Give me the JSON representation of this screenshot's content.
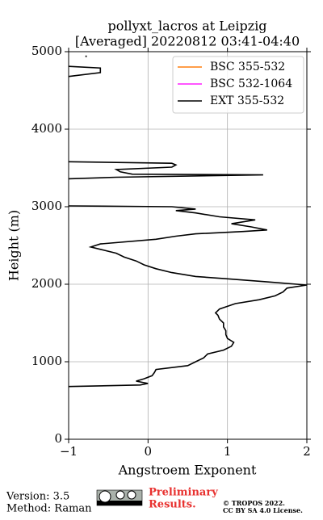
{
  "chart_data": {
    "type": "line",
    "title": [
      "pollyxt_lacros at Leipzig",
      "[Averaged] 20220812 03:41-04:40"
    ],
    "x_label": "Angstroem Exponent",
    "y_label": "Height (m)",
    "y": [
      680,
      700,
      720,
      750,
      780,
      820,
      860,
      900,
      950,
      1000,
      1050,
      1100,
      1150,
      1200,
      1250,
      1300,
      1350,
      1400,
      1450,
      1500,
      1550,
      1600,
      1630,
      1680,
      1750,
      1800,
      1850,
      1900,
      1950,
      1990,
      2030,
      2070,
      2100,
      2150,
      2200,
      2250,
      2300,
      2350,
      2400,
      2450,
      2480,
      2520,
      2580,
      2620,
      2650,
      2680,
      2700,
      2740,
      2780,
      2830,
      2870,
      2920,
      2950,
      2970,
      3000,
      3010,
      3200,
      3360,
      3380,
      3410,
      3420,
      3450,
      3480,
      3510,
      3540,
      3560,
      3580,
      4200,
      4680,
      4730,
      4760,
      4790,
      4810,
      4880,
      4930,
      4950
    ],
    "series": [
      {
        "name": "BSC 355-532",
        "color": "#ff7f0e",
        "values": [
          null,
          null,
          null,
          null,
          null,
          null,
          null,
          null,
          null,
          null,
          null,
          null,
          null,
          null,
          null,
          null,
          null,
          null,
          null,
          null,
          null,
          null,
          null,
          null,
          null,
          null,
          null,
          null,
          null,
          null,
          null,
          null,
          null,
          null,
          null,
          null,
          null,
          null,
          null,
          null,
          null,
          null,
          null,
          null,
          null,
          null,
          null,
          null,
          null,
          null,
          null,
          null,
          null,
          null,
          null,
          null,
          null,
          null,
          null,
          null,
          null,
          null,
          null,
          null,
          null,
          null,
          null,
          null,
          null,
          null,
          null,
          null,
          null,
          null,
          null,
          null
        ]
      },
      {
        "name": "BSC 532-1064",
        "color": "#ff1fff",
        "values": [
          null,
          null,
          null,
          null,
          null,
          null,
          null,
          null,
          null,
          null,
          null,
          null,
          null,
          null,
          null,
          null,
          null,
          null,
          null,
          null,
          null,
          null,
          null,
          null,
          null,
          null,
          null,
          null,
          null,
          null,
          null,
          null,
          null,
          null,
          null,
          null,
          null,
          null,
          null,
          null,
          null,
          null,
          null,
          null,
          null,
          null,
          null,
          null,
          null,
          null,
          null,
          null,
          null,
          null,
          null,
          null,
          null,
          null,
          null,
          null,
          null,
          null,
          null,
          null,
          null,
          null,
          null,
          null,
          null,
          null,
          null,
          null,
          null,
          null,
          null,
          null
        ]
      },
      {
        "name": "EXT 355-532",
        "color": "#000000",
        "values": [
          -1,
          -0.1,
          0,
          -0.15,
          -0.05,
          0.05,
          0.08,
          0.1,
          0.5,
          0.6,
          0.7,
          0.75,
          0.95,
          1.05,
          1.08,
          1,
          0.98,
          0.98,
          0.95,
          0.95,
          0.9,
          0.88,
          0.85,
          0.9,
          1.1,
          1.4,
          1.6,
          1.7,
          1.75,
          2,
          1.5,
          1,
          0.6,
          0.3,
          0.1,
          -0.05,
          -0.15,
          -0.3,
          -0.4,
          -0.6,
          -0.72,
          -0.6,
          0.1,
          0.35,
          0.6,
          1.2,
          1.5,
          1.3,
          1.05,
          1.35,
          0.9,
          0.6,
          0.35,
          0.6,
          0.3,
          -1,
          null,
          -1,
          -0.4,
          1.45,
          -0.2,
          -0.35,
          -0.4,
          0.3,
          0.35,
          0.3,
          -1,
          null,
          -1,
          -0.6,
          -0.6,
          -0.6,
          -1,
          null,
          -0.78,
          -0.78
        ]
      }
    ],
    "xlim": [
      -1,
      2
    ],
    "xticks": [
      {
        "value": -1,
        "label": "−1"
      },
      0,
      1,
      2
    ],
    "ylim": [
      0,
      5000
    ],
    "yticks": [
      0,
      1000,
      2000,
      3000,
      4000,
      5000
    ],
    "grid": true,
    "legend": "upper right"
  },
  "footer": {
    "version": "Version: 3.5",
    "method": "Method: Raman",
    "preliminary": [
      "Preliminary",
      "Results."
    ],
    "license": [
      "© TROPOS 2022.",
      "CC BY SA 4.0 License."
    ]
  }
}
